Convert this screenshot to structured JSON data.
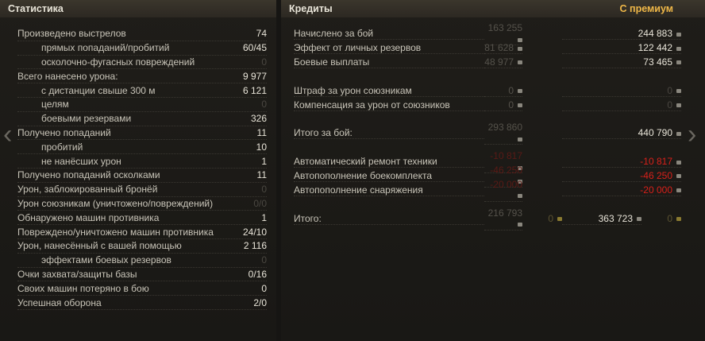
{
  "stats": {
    "title": "Статистика",
    "rows": [
      {
        "label": "Произведено выстрелов",
        "value": "74",
        "indent": 0
      },
      {
        "label": "прямых попаданий/пробитий",
        "value": "60/45",
        "indent": 1
      },
      {
        "label": "осколочно-фугасных повреждений",
        "value": "0",
        "indent": 1,
        "dim": true
      },
      {
        "label": "Всего нанесено урона:",
        "value": "9 977",
        "indent": 0
      },
      {
        "label": "с дистанции свыше 300 м",
        "value": "6 121",
        "indent": 1
      },
      {
        "label": "целям",
        "value": "0",
        "indent": 1,
        "dim": true
      },
      {
        "label": "боевыми резервами",
        "value": "326",
        "indent": 1
      },
      {
        "label": "Получено попаданий",
        "value": "11",
        "indent": 0
      },
      {
        "label": "пробитий",
        "value": "10",
        "indent": 1
      },
      {
        "label": "не нанёсших урон",
        "value": "1",
        "indent": 1
      },
      {
        "label": "Получено попаданий осколками",
        "value": "11",
        "indent": 0
      },
      {
        "label": "Урон, заблокированный бронёй",
        "value": "0",
        "indent": 0,
        "dim": true
      },
      {
        "label": "Урон союзникам (уничтожено/повреждений)",
        "value": "0/0",
        "indent": 0,
        "dim": true
      },
      {
        "label": "Обнаружено машин противника",
        "value": "1",
        "indent": 0
      },
      {
        "label": "Повреждено/уничтожено машин противника",
        "value": "24/10",
        "indent": 0
      },
      {
        "label": "Урон, нанесённый с вашей помощью",
        "value": "2 116",
        "indent": 0
      },
      {
        "label": "эффектами боевых резервов",
        "value": "0",
        "indent": 2,
        "dim": true
      },
      {
        "label": "Очки захвата/защиты базы",
        "value": "0/16",
        "indent": 0
      },
      {
        "label": "Своих машин потеряно в бою",
        "value": "0",
        "indent": 0
      },
      {
        "label": "Успешная оборона",
        "value": "2/0",
        "indent": 0
      }
    ]
  },
  "credits": {
    "title": "Кредиты",
    "premium_label": "С премиум",
    "groups": [
      [
        {
          "label": "Начислено за бой",
          "base": "163 255",
          "premium": "244 883"
        },
        {
          "label": "Эффект от личных резервов",
          "base": "81 628",
          "premium": "122 442"
        },
        {
          "label": "Боевые выплаты",
          "base": "48 977",
          "premium": "73 465"
        }
      ],
      [
        {
          "label": "Штраф за урон союзникам",
          "base": "0",
          "premium": "0",
          "dimPremium": true
        },
        {
          "label": "Компенсация за урон от союзников",
          "base": "0",
          "premium": "0",
          "dimPremium": true
        }
      ],
      [
        {
          "label": "Итого за бой:",
          "base": "293 860",
          "premium": "440 790"
        }
      ],
      [
        {
          "label": "Автоматический ремонт техники",
          "base": "-10 817",
          "premium": "-10 817",
          "red": true
        },
        {
          "label": "Автопополнение боекомплекта",
          "base": "-46 250",
          "premium": "-46 250",
          "red": true
        },
        {
          "label": "Автопополнение снаряжения",
          "base": "-20 000",
          "premium": "-20 000",
          "red": true
        }
      ],
      [
        {
          "label": "Итого:",
          "base": "216 793",
          "base_gold": "0",
          "premium": "363 723",
          "premium_gold": "0"
        }
      ]
    ]
  },
  "nav": {
    "prev": "‹",
    "next": "›"
  },
  "colors": {
    "premium": "#f0b848",
    "negative": "#d8201a"
  }
}
